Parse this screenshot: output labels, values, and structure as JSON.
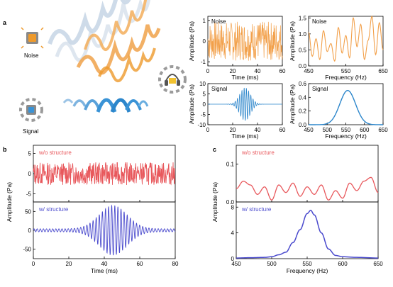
{
  "colors": {
    "noise": "#F2A04A",
    "signal": "#2C86CB",
    "wo": "#E8585C",
    "w": "#4A4ACD",
    "orange_source": "#EE9A2C",
    "blue_source": "#3A93D6",
    "gray": "#9B9B9B"
  },
  "panel_a": {
    "label": "a",
    "noise_label": "Noise",
    "signal_label": "Signal",
    "icons": [
      "speaker-icon",
      "sensor-icon",
      "headphones-icon"
    ],
    "plots": [
      {
        "id": "noise-time",
        "name": "Noise",
        "xlabel": "Time (ms)",
        "ylabel": "Amplitude (Pa)",
        "xlim": [
          0,
          60
        ],
        "ylim": [
          -1.2,
          1.2
        ],
        "xticks": [
          "0",
          "20",
          "40",
          "60"
        ],
        "yticks": [
          "1",
          "0",
          "-1"
        ],
        "ytick_values": [
          1,
          0,
          -1
        ],
        "xtick_values": [
          0,
          20,
          40,
          60
        ],
        "chart_data": {
          "type": "line",
          "x": [
            0,
            60
          ],
          "description_values": "broadband noise oscillating between about -1 and 1 Pa"
        }
      },
      {
        "id": "noise-freq",
        "name": "Noise",
        "xlabel": "Frequency (Hz)",
        "ylabel": "Amplitude (Pa)",
        "xlim": [
          450,
          650
        ],
        "ylim": [
          0,
          1.55
        ],
        "xticks": [
          "450",
          "550",
          "650"
        ],
        "yticks": [
          "1.5",
          "1.0",
          "0.5",
          "0.0"
        ],
        "ytick_values": [
          1.5,
          1.0,
          0.5,
          0.0
        ],
        "xtick_values": [
          450,
          550,
          650
        ],
        "chart_data": {
          "type": "line",
          "x": [
            450,
            460,
            470,
            480,
            490,
            500,
            510,
            520,
            530,
            540,
            550,
            560,
            570,
            580,
            590,
            600,
            610,
            620,
            630,
            640,
            650
          ],
          "y": [
            1.05,
            0.3,
            0.85,
            0.2,
            1.1,
            0.45,
            0.7,
            0.15,
            1.2,
            0.4,
            0.95,
            0.25,
            1.5,
            0.6,
            1.3,
            0.2,
            0.8,
            1.55,
            0.35,
            1.35,
            0.5
          ]
        }
      },
      {
        "id": "signal-time",
        "name": "Signal",
        "xlabel": "Time (ms)",
        "ylabel": "Amplitude (Pa)",
        "xlim": [
          0,
          60
        ],
        "ylim": [
          -10,
          10
        ],
        "xticks": [
          "0",
          "20",
          "40",
          "60"
        ],
        "yticks": [
          "10",
          "5",
          "0",
          "-5",
          "-10"
        ],
        "ytick_values": [
          10,
          5,
          0,
          -5,
          -10
        ],
        "xtick_values": [
          0,
          20,
          40,
          60
        ],
        "chart_data": {
          "type": "line",
          "envelope": "gaussian",
          "center_ms": 30,
          "peak_pa": 8,
          "carrier_hz": 550
        }
      },
      {
        "id": "signal-freq",
        "name": "Signal",
        "xlabel": "Frequency (Hz)",
        "ylabel": "Amplitude (Pa)",
        "xlim": [
          450,
          650
        ],
        "ylim": [
          0,
          0.6
        ],
        "xticks": [
          "450",
          "500",
          "550",
          "600",
          "650"
        ],
        "yticks": [
          "0.6",
          "0.4",
          "0.2",
          "0.0"
        ],
        "ytick_values": [
          0.6,
          0.4,
          0.2,
          0.0
        ],
        "xtick_values": [
          450,
          500,
          550,
          600,
          650
        ],
        "chart_data": {
          "type": "line",
          "shape": "gaussian",
          "center_hz": 555,
          "peak": 0.5,
          "width_hz": 30
        }
      }
    ]
  },
  "panel_b": {
    "label": "b",
    "ylabel": "Amplitude (Pa)",
    "xlabel": "Time (ms)",
    "xticks": [
      "0",
      "20",
      "40",
      "60",
      "80"
    ],
    "xtick_values": [
      0,
      20,
      40,
      60,
      80
    ],
    "top": {
      "name": "w/o structure",
      "ylim": [
        -7,
        7
      ],
      "yticks": [
        "5",
        "0",
        "-5"
      ],
      "ytick_values": [
        5,
        0,
        -5
      ],
      "chart_data": {
        "type": "line",
        "x": [
          0,
          80
        ],
        "description_values": "noise between about -3 and 3 Pa"
      }
    },
    "bottom": {
      "name": "w/ structure",
      "ylim": [
        -75,
        75
      ],
      "yticks": [
        "50",
        "0",
        "-50"
      ],
      "ytick_values": [
        50,
        0,
        -50
      ],
      "chart_data": {
        "type": "line",
        "envelope": "gaussian",
        "center_ms": 45,
        "peak_pa": 62,
        "carrier_hz": 550
      }
    }
  },
  "panel_c": {
    "label": "c",
    "ylabel": "Amplitude (Pa)",
    "xlabel": "Frequency (Hz)",
    "xticks": [
      "450",
      "500",
      "550",
      "600",
      "650"
    ],
    "xtick_values": [
      450,
      500,
      550,
      600,
      650
    ],
    "top": {
      "name": "w/o structure",
      "ylim": [
        0,
        0.15
      ],
      "yticks": [
        "0.1",
        "0.0"
      ],
      "ytick_values": [
        0.1,
        0.0
      ],
      "chart_data": {
        "type": "line",
        "x": [
          450,
          460,
          470,
          480,
          490,
          500,
          510,
          520,
          530,
          540,
          550,
          560,
          570,
          580,
          590,
          600,
          610,
          620,
          630,
          640,
          650
        ],
        "y": [
          0.035,
          0.055,
          0.045,
          0.02,
          0.04,
          0.005,
          0.045,
          0.025,
          0.05,
          0.015,
          0.04,
          0.02,
          0.045,
          0.005,
          0.03,
          0.01,
          0.05,
          0.03,
          0.055,
          0.065,
          0.025
        ]
      }
    },
    "bottom": {
      "name": "w/ structure",
      "ylim": [
        0,
        8.8
      ],
      "yticks": [
        "8",
        "4",
        "0"
      ],
      "ytick_values": [
        8,
        4,
        0
      ],
      "chart_data": {
        "type": "line",
        "x": [
          450,
          470,
          490,
          500,
          510,
          520,
          530,
          540,
          550,
          555,
          560,
          570,
          580,
          590,
          600,
          620,
          650
        ],
        "y": [
          0.1,
          0.15,
          0.2,
          0.3,
          0.6,
          1.0,
          2.5,
          4.5,
          7.0,
          7.5,
          6.8,
          4.0,
          1.5,
          0.5,
          0.3,
          0.2,
          0.1
        ]
      }
    }
  }
}
